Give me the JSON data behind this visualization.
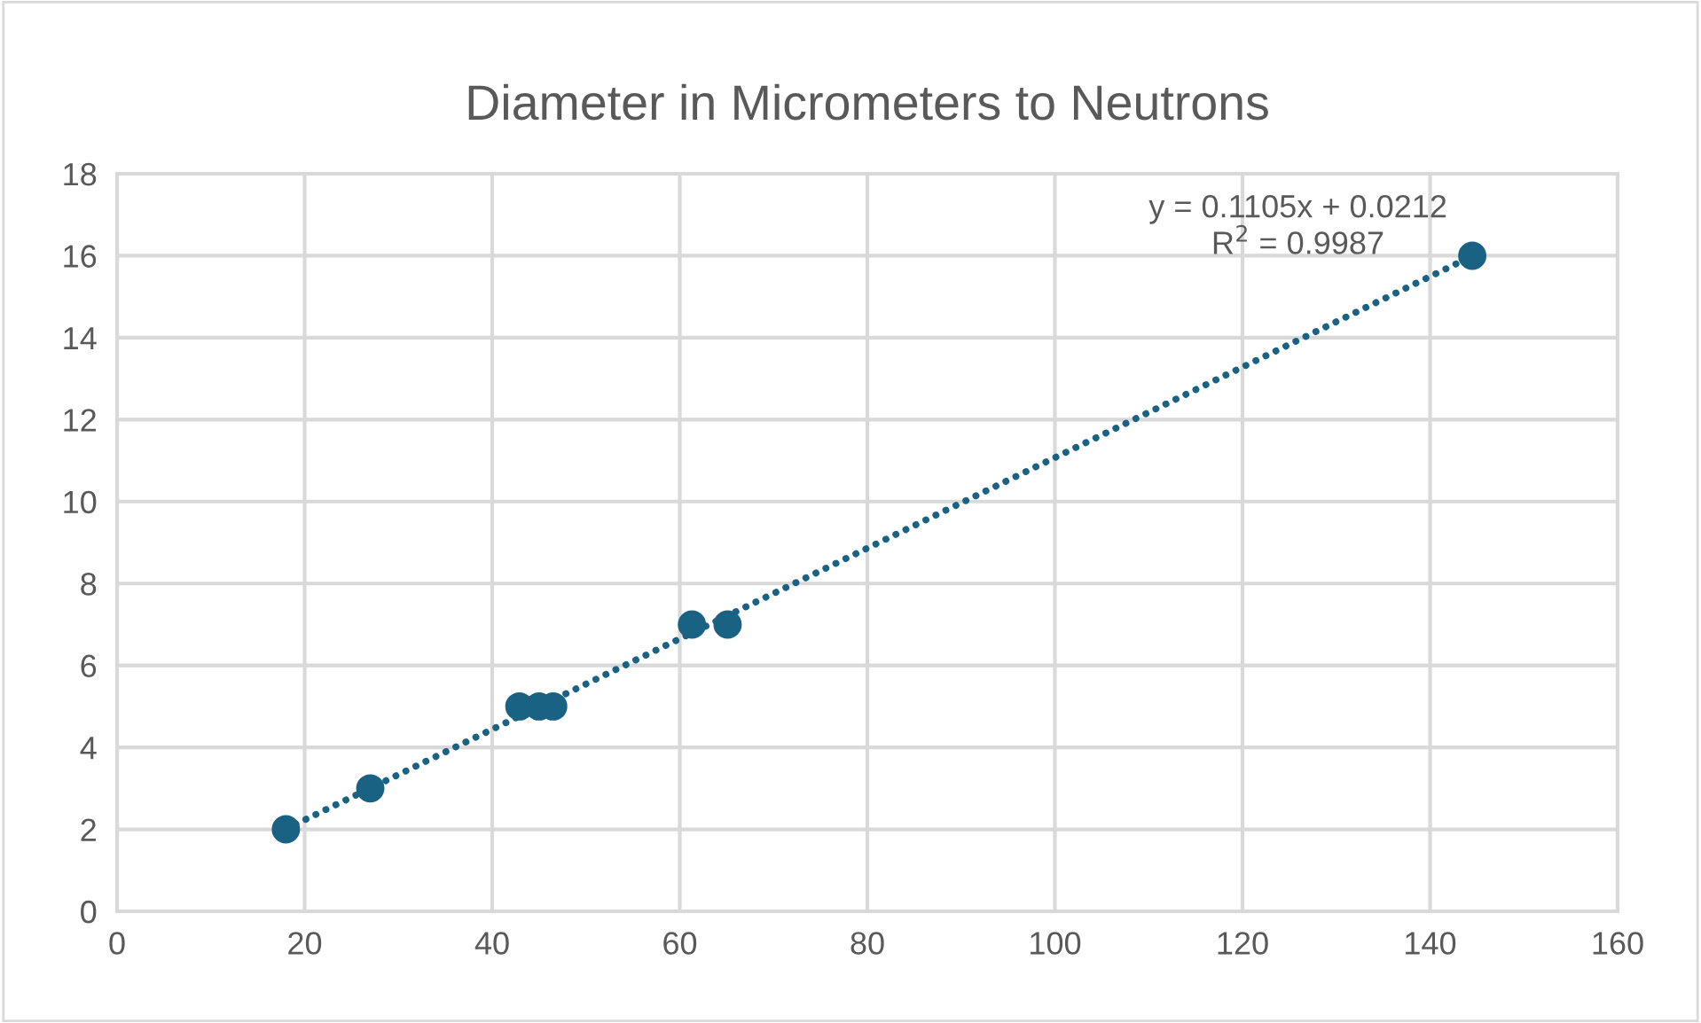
{
  "chart_data": {
    "type": "scatter",
    "title": "Diameter in Micrometers to Neutrons",
    "series": [
      {
        "color": "#1a6283",
        "marker": "circle",
        "x": [
          18.0,
          27.0,
          42.9,
          45.0,
          46.5,
          61.3,
          65.1,
          144.5
        ],
        "values": [
          2,
          3,
          5,
          5,
          5,
          7,
          7,
          16
        ]
      },
      {
        "type": "line",
        "color": "#1a6283",
        "x": [
          18.0,
          144.5
        ],
        "values": [
          2.01,
          15.99
        ],
        "line_style": "dotted",
        "marker": "none"
      }
    ],
    "annotations": [
      "y = 0.1105x + 0.0212\nR$^{2}$ = 0.9987"
    ],
    "xlim": [
      0,
      160
    ],
    "xticks": [
      0,
      20,
      40,
      60,
      80,
      100,
      120,
      140,
      160
    ],
    "ylim": [
      0,
      18
    ],
    "yticks": [
      0,
      2,
      4,
      6,
      8,
      10,
      12,
      14,
      16,
      18
    ],
    "grid": true
  }
}
